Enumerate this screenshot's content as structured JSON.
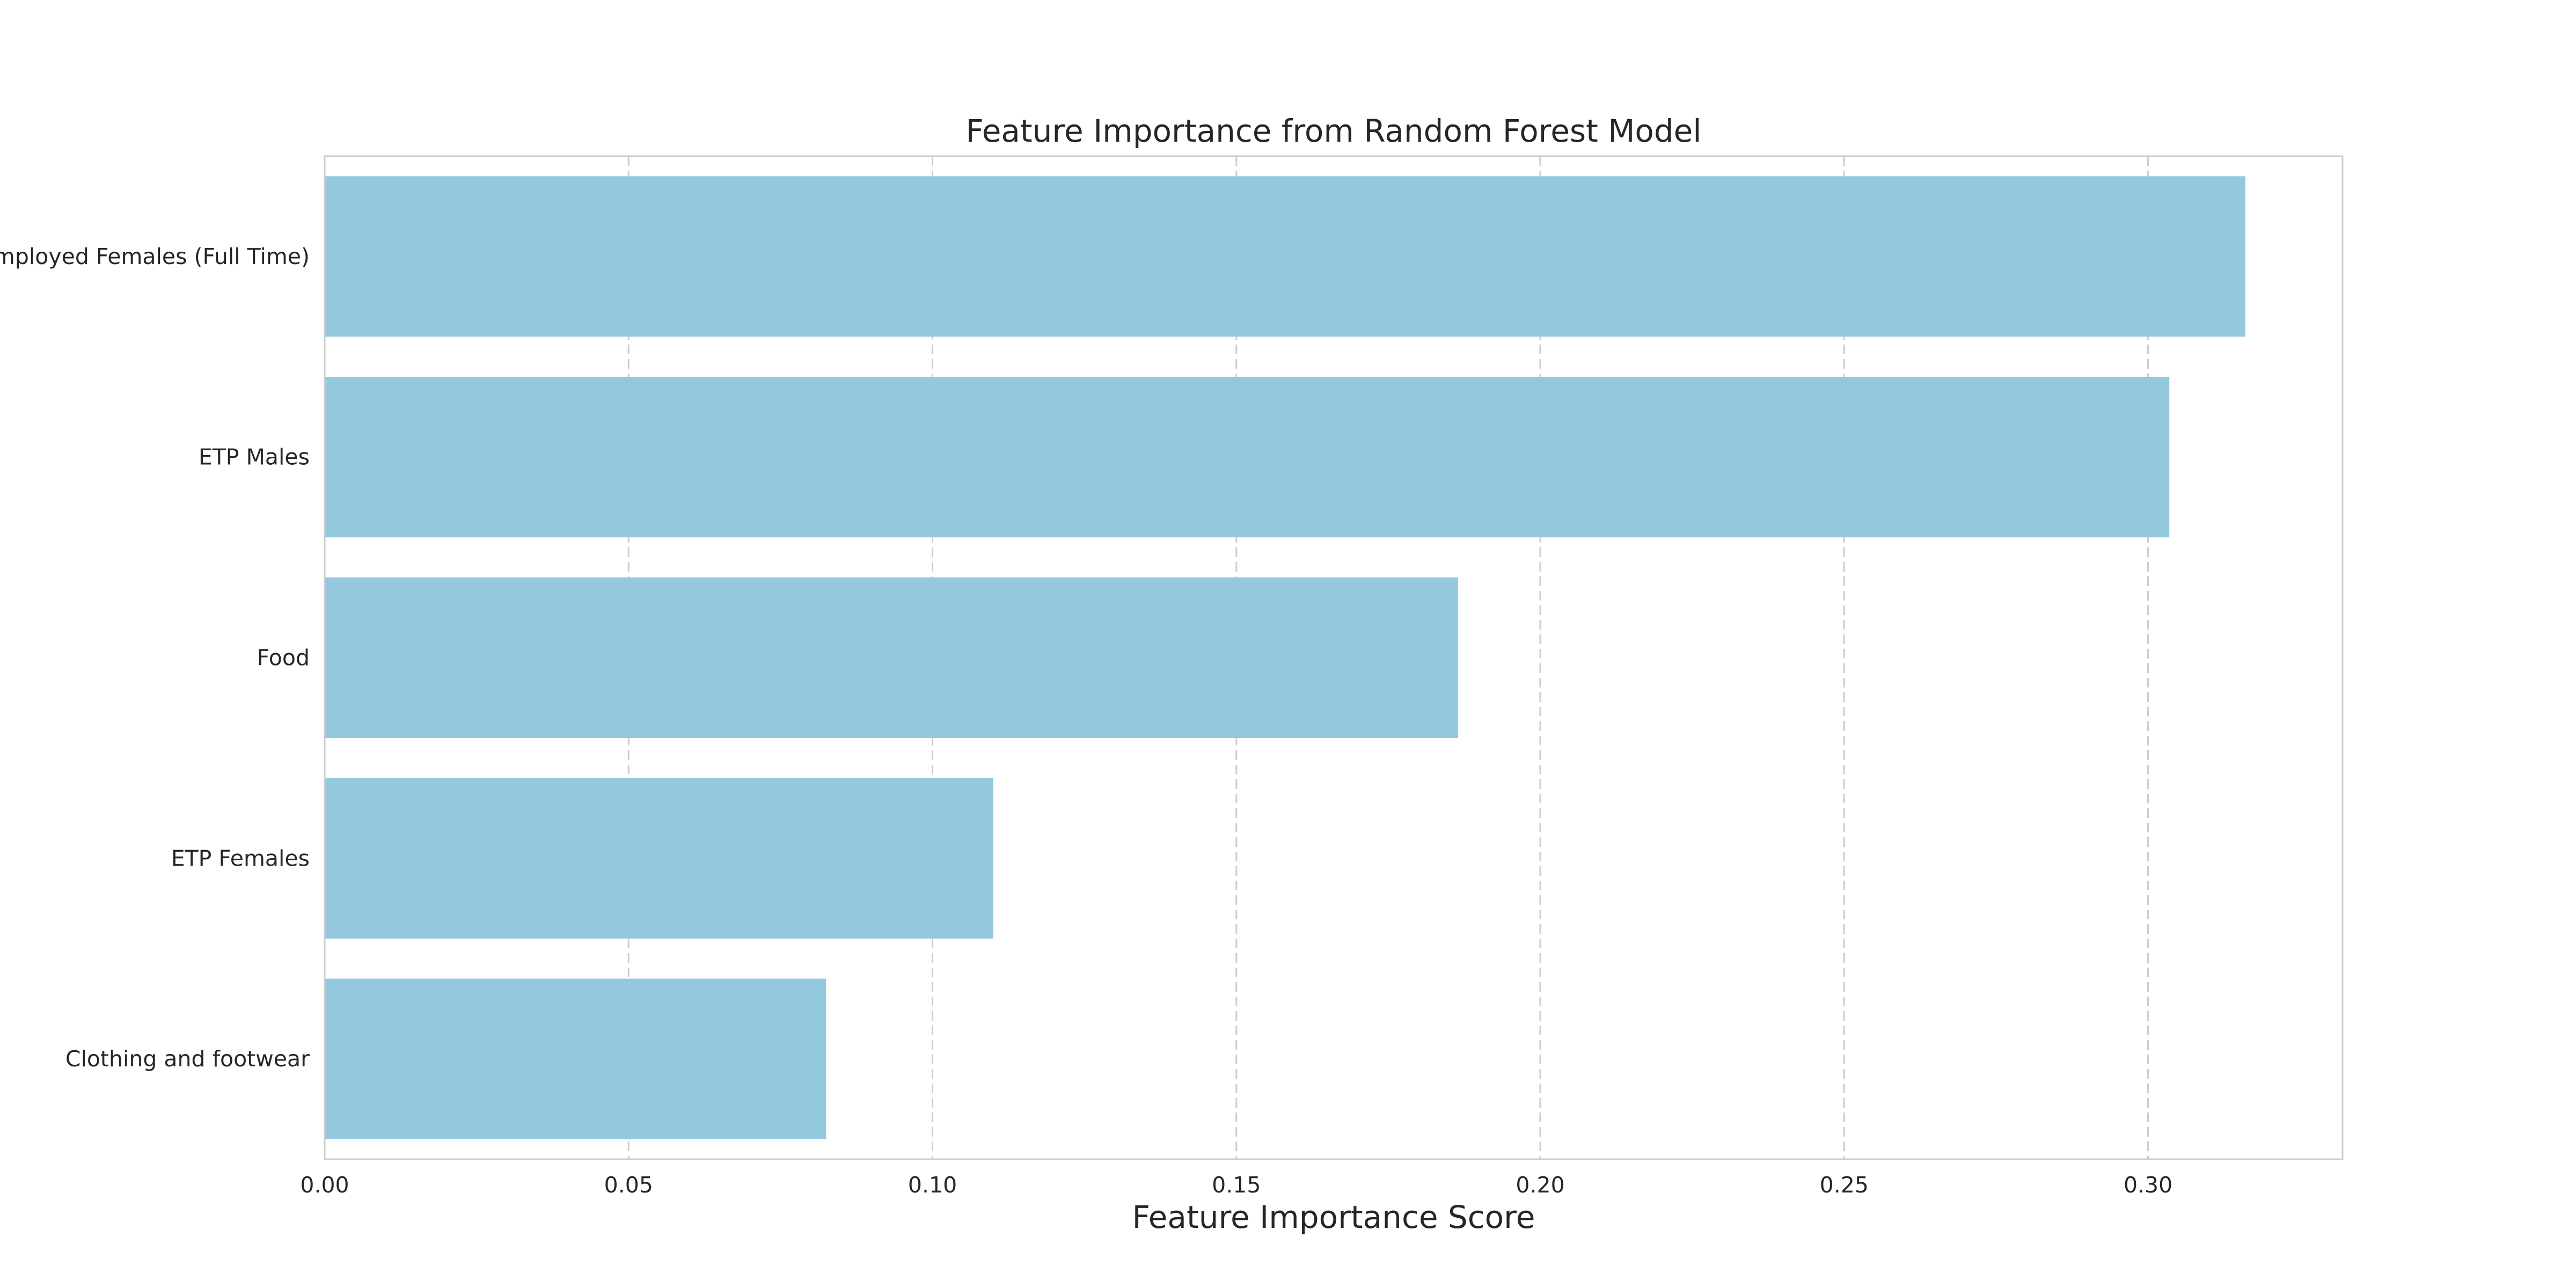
{
  "chart_data": {
    "type": "bar",
    "orientation": "horizontal",
    "title": "Feature Importance from Random Forest Model",
    "xlabel": "Feature Importance Score",
    "ylabel": "",
    "categories": [
      "Employed Females (Full Time)",
      "ETP Males",
      "Food",
      "ETP Females",
      "Clothing and footwear"
    ],
    "values": [
      0.316,
      0.3035,
      0.1865,
      0.11,
      0.0825
    ],
    "xlim": [
      0.0,
      0.332
    ],
    "xticks": [
      0.0,
      0.05,
      0.1,
      0.15,
      0.2,
      0.25,
      0.3
    ],
    "xtick_labels": [
      "0.00",
      "0.05",
      "0.10",
      "0.15",
      "0.20",
      "0.25",
      "0.30"
    ],
    "grid": "x-dashed",
    "legend": "none",
    "colors": {
      "bar": "#93c8df",
      "grid": "#cccccc",
      "frame": "#cccccc",
      "text": "#262626"
    }
  }
}
